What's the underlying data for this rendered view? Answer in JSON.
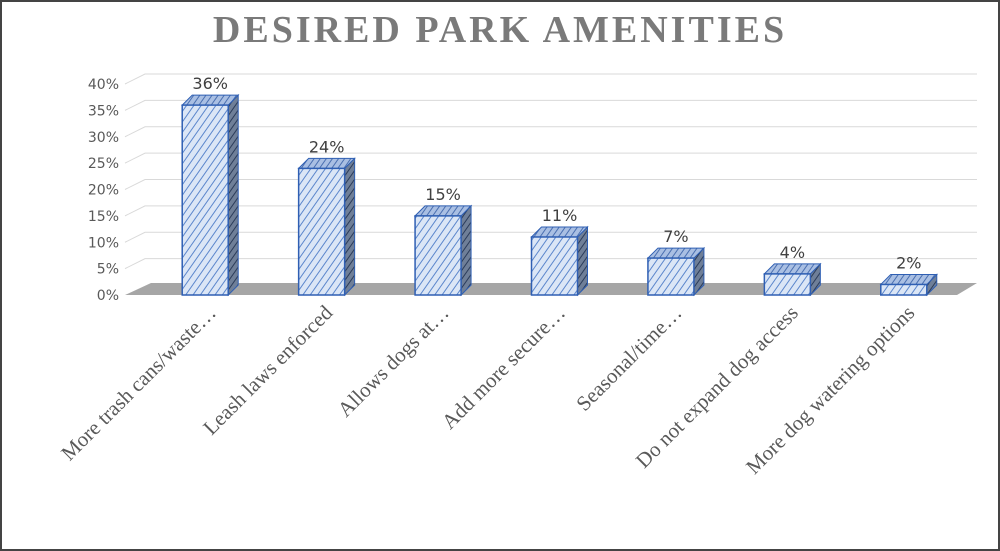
{
  "chart_data": {
    "type": "bar",
    "title": "DESIRED PARK AMENITIES",
    "categories": [
      "More trash cans/waste…",
      "Leash laws enforced",
      "Allows dogs at…",
      "Add more secure…",
      "Seasonal/time…",
      "Do not expand dog access",
      "More dog watering options"
    ],
    "values": [
      36,
      24,
      15,
      11,
      7,
      4,
      2
    ],
    "data_labels": [
      "36%",
      "24%",
      "15%",
      "11%",
      "7%",
      "4%",
      "2%"
    ],
    "y_ticks": [
      "0%",
      "5%",
      "10%",
      "15%",
      "20%",
      "25%",
      "30%",
      "35%",
      "40%"
    ],
    "ylim": [
      0,
      40
    ],
    "y_unit": "%",
    "grid": true,
    "style": "3d-column",
    "colors": {
      "bar_face": "#dbe6f6",
      "bar_hatch": "#5b86cc",
      "bar_edge": "#2f5fb3",
      "floor": "#a6a6a6",
      "grid": "#d9d9d9",
      "title": "#7a7a7a"
    }
  }
}
